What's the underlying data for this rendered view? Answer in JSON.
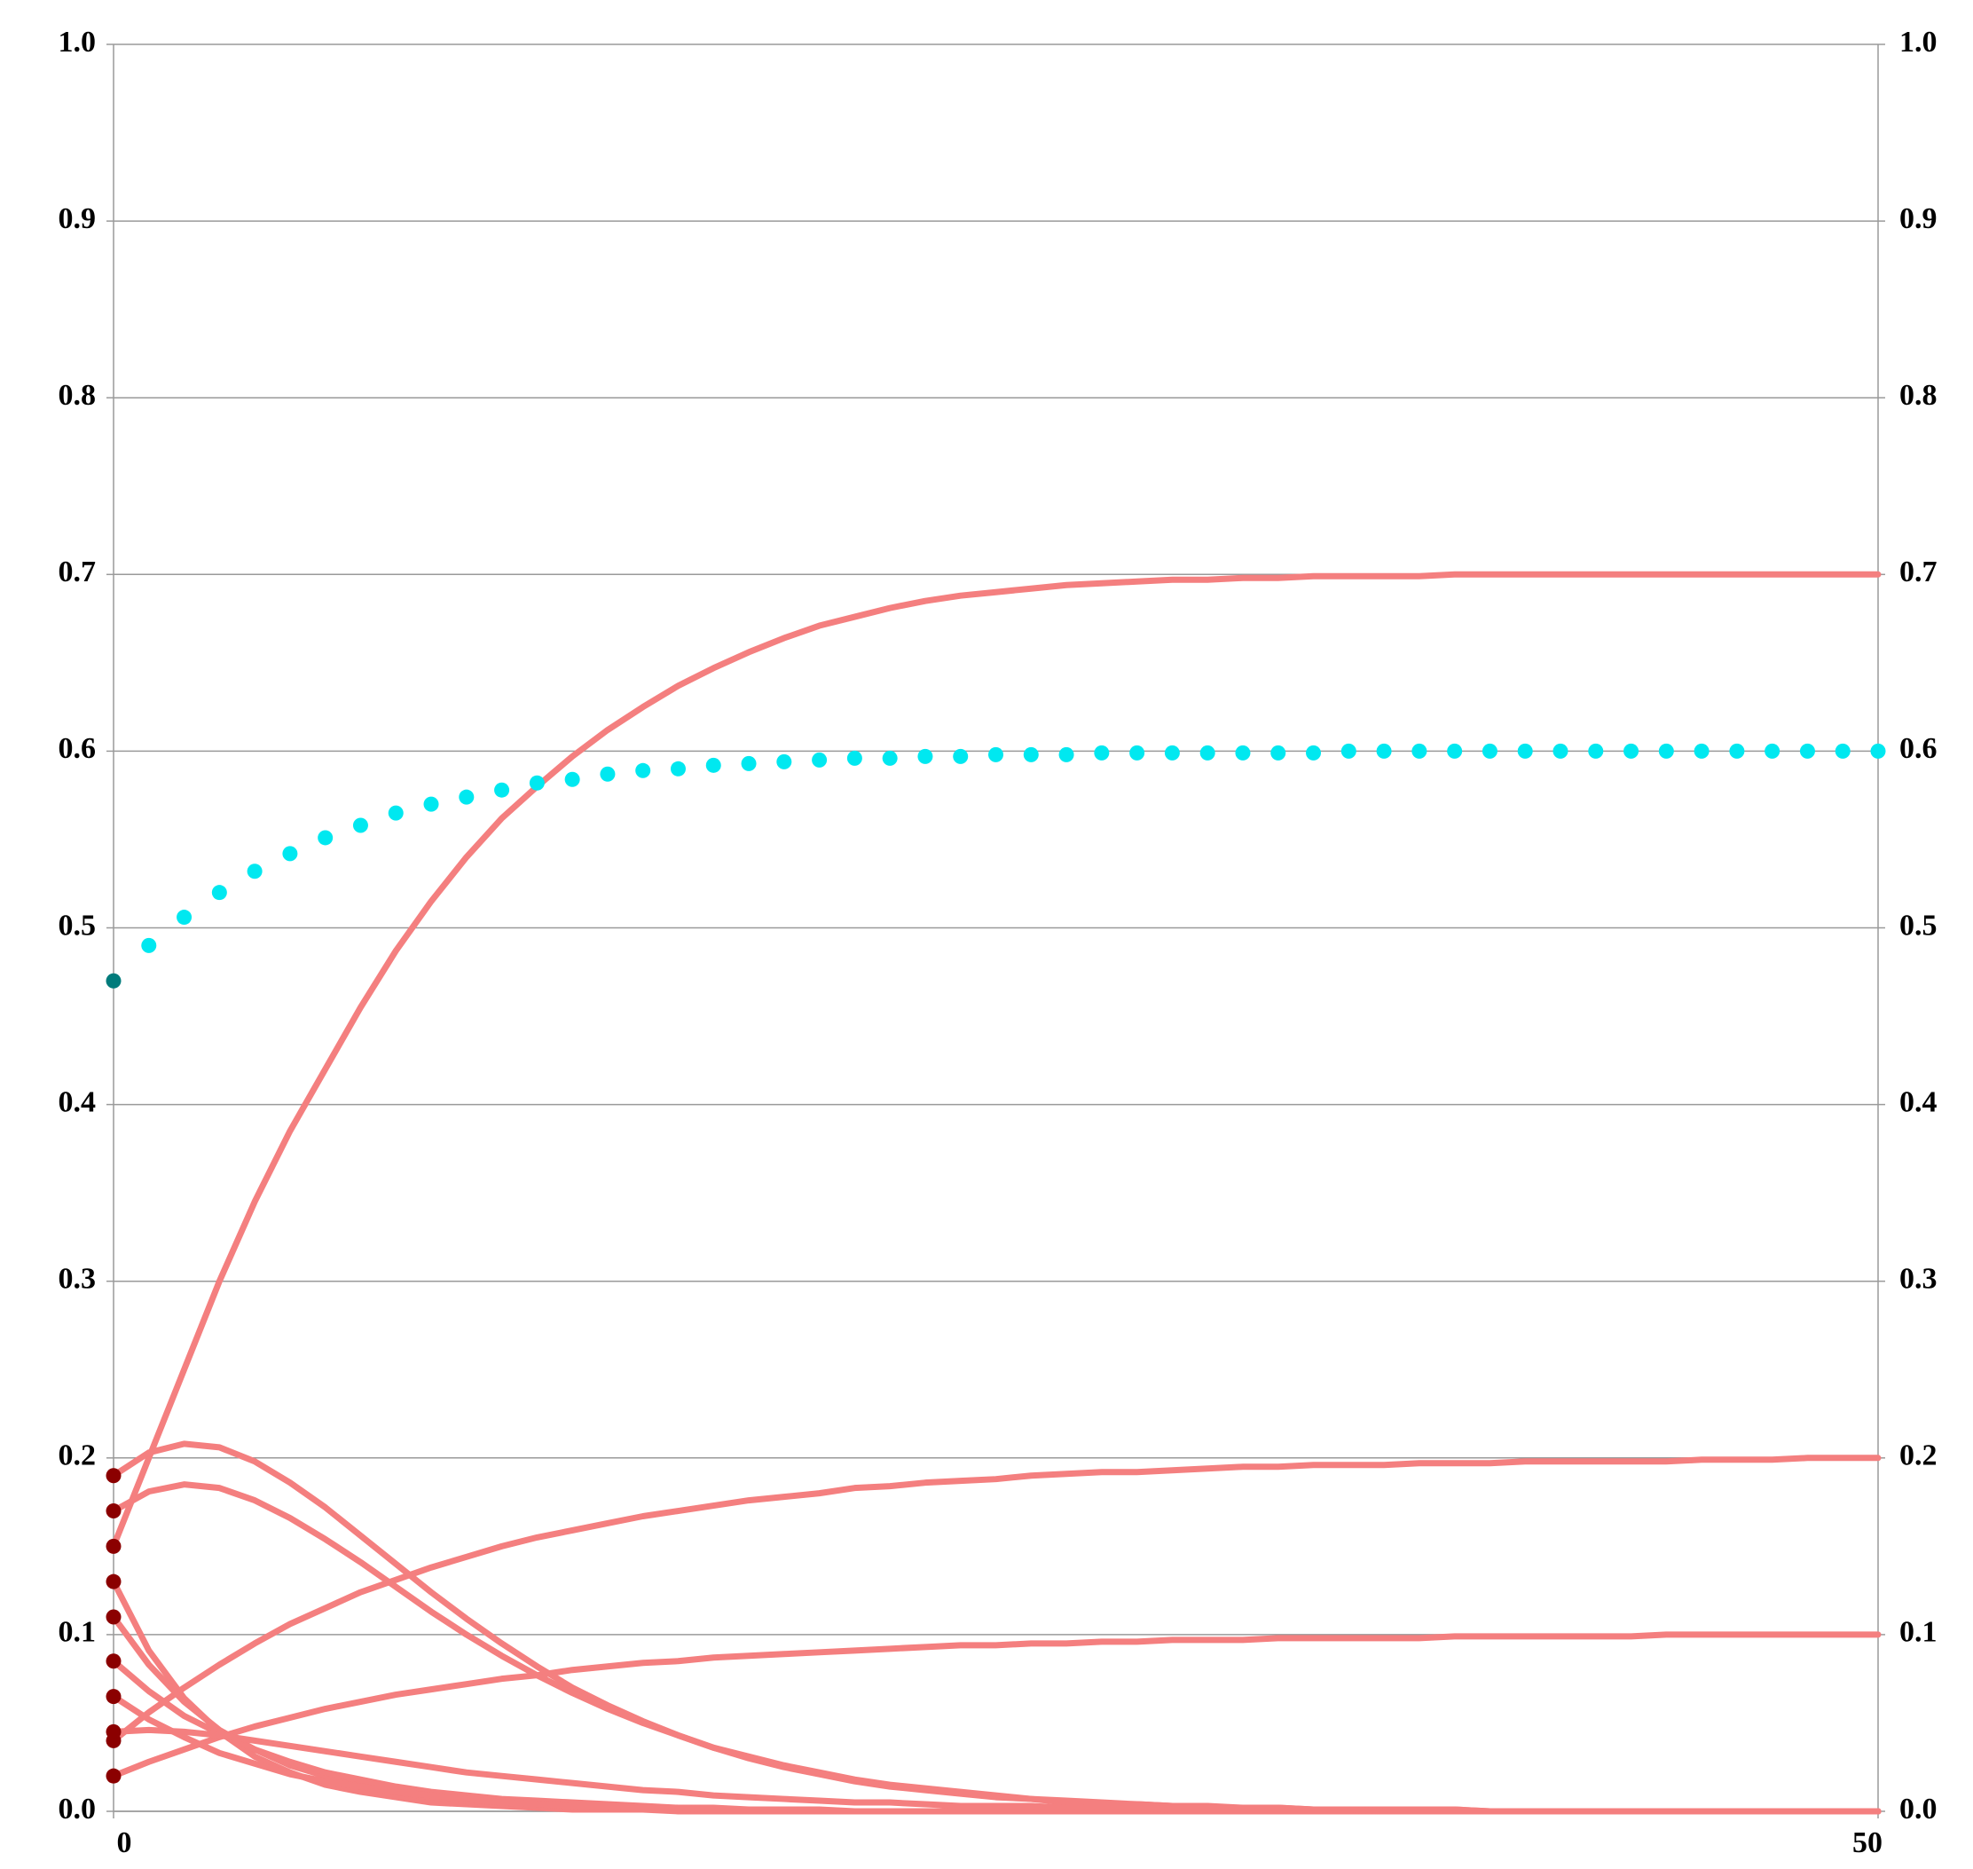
{
  "chart_data": {
    "type": "line",
    "x": [
      0,
      1,
      2,
      3,
      4,
      5,
      6,
      7,
      8,
      9,
      10,
      11,
      12,
      13,
      14,
      15,
      16,
      17,
      18,
      19,
      20,
      21,
      22,
      23,
      24,
      25,
      26,
      27,
      28,
      29,
      30,
      31,
      32,
      33,
      34,
      35,
      36,
      37,
      38,
      39,
      40,
      41,
      42,
      43,
      44,
      45,
      46,
      47,
      48,
      49,
      50
    ],
    "xlim": [
      0,
      50
    ],
    "xticks": [
      0,
      50
    ],
    "ylim": [
      0,
      1
    ],
    "yticks": [
      {
        "value": 0,
        "label": "0.0"
      },
      0.1,
      0.2,
      0.3,
      0.4,
      0.5,
      0.6,
      0.7,
      0.8,
      0.9,
      {
        "value": 1,
        "label": "1.0"
      }
    ],
    "y2lim": [
      0,
      1
    ],
    "y2ticks": [
      {
        "value": 0,
        "label": "0.0"
      },
      0.1,
      0.2,
      0.3,
      0.4,
      0.5,
      0.6,
      0.7,
      0.8,
      0.9,
      {
        "value": 1,
        "label": "1.0"
      }
    ],
    "grid": true,
    "series": [
      {
        "color": "#f47f7f",
        "start_color": "#8b0000",
        "style": "line",
        "values": [
          0.15,
          0.2,
          0.25,
          0.3,
          0.345,
          0.385,
          0.42,
          0.455,
          0.487,
          0.515,
          0.54,
          0.562,
          0.58,
          0.597,
          0.612,
          0.625,
          0.637,
          0.647,
          0.656,
          0.664,
          0.671,
          0.676,
          0.681,
          0.685,
          0.688,
          0.69,
          0.692,
          0.694,
          0.695,
          0.696,
          0.697,
          0.697,
          0.698,
          0.698,
          0.699,
          0.699,
          0.699,
          0.699,
          0.7,
          0.7,
          0.7,
          0.7,
          0.7,
          0.7,
          0.7,
          0.7,
          0.7,
          0.7,
          0.7,
          0.7,
          0.7
        ]
      },
      {
        "color": "#f47f7f",
        "start_color": "#8b0000",
        "style": "line",
        "values": [
          0.04,
          0.056,
          0.07,
          0.083,
          0.095,
          0.106,
          0.115,
          0.124,
          0.131,
          0.138,
          0.144,
          0.15,
          0.155,
          0.159,
          0.163,
          0.167,
          0.17,
          0.173,
          0.176,
          0.178,
          0.18,
          0.183,
          0.184,
          0.186,
          0.187,
          0.188,
          0.19,
          0.191,
          0.192,
          0.192,
          0.193,
          0.194,
          0.195,
          0.195,
          0.196,
          0.196,
          0.196,
          0.197,
          0.197,
          0.197,
          0.198,
          0.198,
          0.198,
          0.198,
          0.198,
          0.199,
          0.199,
          0.199,
          0.2,
          0.2,
          0.2
        ]
      },
      {
        "color": "#f47f7f",
        "start_color": "#8b0000",
        "style": "line",
        "values": [
          0.02,
          0.028,
          0.035,
          0.042,
          0.048,
          0.053,
          0.058,
          0.062,
          0.066,
          0.069,
          0.072,
          0.075,
          0.077,
          0.08,
          0.082,
          0.084,
          0.085,
          0.087,
          0.088,
          0.089,
          0.09,
          0.091,
          0.092,
          0.093,
          0.094,
          0.094,
          0.095,
          0.095,
          0.096,
          0.096,
          0.097,
          0.097,
          0.097,
          0.098,
          0.098,
          0.098,
          0.098,
          0.098,
          0.099,
          0.099,
          0.099,
          0.099,
          0.099,
          0.099,
          0.1,
          0.1,
          0.1,
          0.1,
          0.1,
          0.1,
          0.1
        ]
      },
      {
        "color": "#f47f7f",
        "start_color": "#8b0000",
        "style": "line",
        "values": [
          0.19,
          0.203,
          0.208,
          0.206,
          0.198,
          0.186,
          0.172,
          0.156,
          0.14,
          0.124,
          0.109,
          0.095,
          0.082,
          0.07,
          0.06,
          0.051,
          0.043,
          0.036,
          0.03,
          0.025,
          0.021,
          0.017,
          0.014,
          0.012,
          0.01,
          0.008,
          0.007,
          0.005,
          0.004,
          0.004,
          0.003,
          0.002,
          0.002,
          0.002,
          0.001,
          0.001,
          0.001,
          0.001,
          0.001,
          0,
          0,
          0,
          0,
          0,
          0,
          0,
          0,
          0,
          0,
          0,
          0
        ]
      },
      {
        "color": "#f47f7f",
        "start_color": "#8b0000",
        "style": "line",
        "values": [
          0.17,
          0.181,
          0.185,
          0.183,
          0.176,
          0.166,
          0.154,
          0.141,
          0.127,
          0.113,
          0.1,
          0.088,
          0.077,
          0.067,
          0.058,
          0.05,
          0.043,
          0.036,
          0.031,
          0.026,
          0.022,
          0.018,
          0.015,
          0.013,
          0.011,
          0.009,
          0.007,
          0.006,
          0.005,
          0.004,
          0.003,
          0.003,
          0.002,
          0.002,
          0.001,
          0.001,
          0.001,
          0.001,
          0.001,
          0,
          0,
          0,
          0,
          0,
          0,
          0,
          0,
          0,
          0,
          0,
          0
        ]
      },
      {
        "color": "#f47f7f",
        "start_color": "#8b0000",
        "style": "line",
        "values": [
          0.13,
          0.091,
          0.064,
          0.045,
          0.031,
          0.022,
          0.015,
          0.011,
          0.008,
          0.005,
          0.004,
          0.003,
          0.002,
          0.001,
          0.001,
          0.001,
          0,
          0,
          0,
          0,
          0,
          0,
          0,
          0,
          0,
          0,
          0,
          0,
          0,
          0,
          0,
          0,
          0,
          0,
          0,
          0,
          0,
          0,
          0,
          0,
          0,
          0,
          0,
          0,
          0,
          0,
          0,
          0,
          0,
          0,
          0
        ]
      },
      {
        "color": "#f47f7f",
        "start_color": "#8b0000",
        "style": "line",
        "values": [
          0.11,
          0.083,
          0.062,
          0.046,
          0.035,
          0.026,
          0.02,
          0.015,
          0.011,
          0.008,
          0.006,
          0.005,
          0.003,
          0.003,
          0.002,
          0.001,
          0.001,
          0.001,
          0,
          0,
          0,
          0,
          0,
          0,
          0,
          0,
          0,
          0,
          0,
          0,
          0,
          0,
          0,
          0,
          0,
          0,
          0,
          0,
          0,
          0,
          0,
          0,
          0,
          0,
          0,
          0,
          0,
          0,
          0,
          0,
          0
        ]
      },
      {
        "color": "#f47f7f",
        "start_color": "#8b0000",
        "style": "line",
        "values": [
          0.085,
          0.068,
          0.054,
          0.044,
          0.035,
          0.028,
          0.022,
          0.018,
          0.014,
          0.011,
          0.009,
          0.007,
          0.006,
          0.005,
          0.004,
          0.003,
          0.002,
          0.002,
          0.001,
          0.001,
          0.001,
          0,
          0,
          0,
          0,
          0,
          0,
          0,
          0,
          0,
          0,
          0,
          0,
          0,
          0,
          0,
          0,
          0,
          0,
          0,
          0,
          0,
          0,
          0,
          0,
          0,
          0,
          0,
          0,
          0,
          0
        ]
      },
      {
        "color": "#f47f7f",
        "start_color": "#8b0000",
        "style": "line",
        "values": [
          0.065,
          0.052,
          0.042,
          0.033,
          0.027,
          0.021,
          0.017,
          0.014,
          0.011,
          0.009,
          0.007,
          0.005,
          0.004,
          0.003,
          0.003,
          0.002,
          0.002,
          0.001,
          0.001,
          0.001,
          0,
          0,
          0,
          0,
          0,
          0,
          0,
          0,
          0,
          0,
          0,
          0,
          0,
          0,
          0,
          0,
          0,
          0,
          0,
          0,
          0,
          0,
          0,
          0,
          0,
          0,
          0,
          0,
          0,
          0,
          0
        ]
      },
      {
        "color": "#f47f7f",
        "start_color": "#8b0000",
        "style": "line",
        "values": [
          0.045,
          0.046,
          0.045,
          0.043,
          0.04,
          0.037,
          0.034,
          0.031,
          0.028,
          0.025,
          0.022,
          0.02,
          0.018,
          0.016,
          0.014,
          0.012,
          0.011,
          0.009,
          0.008,
          0.007,
          0.006,
          0.005,
          0.005,
          0.004,
          0.003,
          0.003,
          0.003,
          0.002,
          0.002,
          0.002,
          0.001,
          0.001,
          0.001,
          0.001,
          0.001,
          0.001,
          0,
          0,
          0,
          0,
          0,
          0,
          0,
          0,
          0,
          0,
          0,
          0,
          0,
          0,
          0
        ]
      },
      {
        "color": "#00e8f0",
        "start_color": "#007b7b",
        "style": "dots",
        "values": [
          0.47,
          0.49,
          0.506,
          0.52,
          0.532,
          0.542,
          0.551,
          0.558,
          0.565,
          0.57,
          0.574,
          0.578,
          0.582,
          0.584,
          0.587,
          0.589,
          0.59,
          0.592,
          0.593,
          0.594,
          0.595,
          0.596,
          0.596,
          0.597,
          0.597,
          0.598,
          0.598,
          0.598,
          0.599,
          0.599,
          0.599,
          0.599,
          0.599,
          0.599,
          0.599,
          0.6,
          0.6,
          0.6,
          0.6,
          0.6,
          0.6,
          0.6,
          0.6,
          0.6,
          0.6,
          0.6,
          0.6,
          0.6,
          0.6,
          0.6,
          0.6
        ]
      }
    ]
  }
}
